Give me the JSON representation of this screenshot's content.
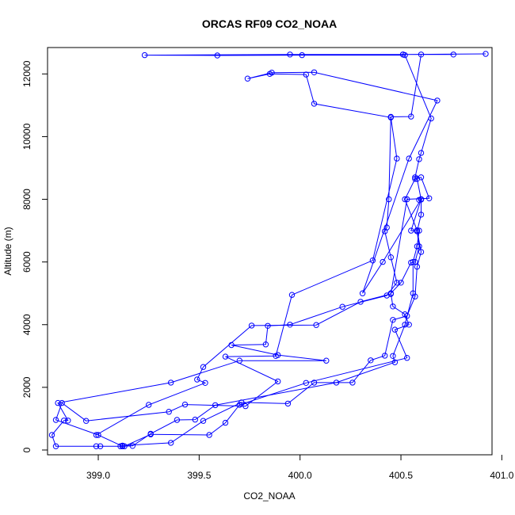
{
  "colors": {
    "series": "#0000ff",
    "axis": "#000000",
    "background": "#ffffff"
  },
  "chart_data": {
    "type": "line",
    "title": "ORCAS RF09 CO2_NOAA",
    "xlabel": "CO2_NOAA",
    "ylabel": "Altitude (m)",
    "xlim": [
      398.78,
      400.92
    ],
    "ylim": [
      50,
      12640
    ],
    "x_ticks": [
      399.0,
      399.5,
      400.0,
      400.5,
      401.0
    ],
    "x_tick_labels": [
      "399.0",
      "399.5",
      "400.0",
      "400.5",
      "401.0"
    ],
    "y_ticks": [
      0,
      2000,
      4000,
      6000,
      8000,
      10000,
      12000
    ],
    "y_tick_labels": [
      "0",
      "2000",
      "4000",
      "6000",
      "8000",
      "10000",
      "12000"
    ],
    "marker": "open-circle",
    "series": [
      {
        "x": [
          398.99,
          399.13,
          399.26,
          399.55,
          399.63,
          399.7,
          400.03,
          400.53,
          400.47,
          400.54,
          400.52,
          400.46,
          400.45,
          400.5,
          400.55,
          400.57,
          400.59,
          400.58,
          400.6,
          400.6,
          400.59,
          400.6,
          400.58,
          400.57,
          400.59,
          400.6,
          400.65,
          400.52,
          400.01,
          399.59,
          399.23,
          399.95,
          400.51,
          400.92,
          400.51,
          400.76,
          400.6,
          400.55,
          400.45,
          400.44,
          400.43,
          400.42,
          400.45,
          400.48,
          400.43,
          400.21,
          399.95,
          399.84,
          399.83,
          399.66,
          399.89,
          400.13,
          399.7,
          399.36,
          398.8,
          398.85,
          398.83,
          398.77,
          398.79,
          399.01
        ],
        "y": [
          120,
          120,
          500,
          480,
          870,
          1440,
          2140,
          2940,
          3840,
          4000,
          4330,
          4580,
          5000,
          5340,
          5980,
          6000,
          6500,
          6980,
          7510,
          7990,
          7980,
          8000,
          8650,
          8700,
          9280,
          9480,
          10580,
          12600,
          12600,
          12590,
          12600,
          12620,
          12620,
          12640,
          12620,
          12620,
          12620,
          10640,
          10630,
          8000,
          7100,
          6980,
          6150,
          5340,
          4930,
          4570,
          4000,
          3960,
          3370,
          3350,
          3030,
          2850,
          2850,
          2150,
          1500,
          940,
          940,
          480,
          120,
          120
        ]
      },
      {
        "x": [
          399.11,
          399.17,
          399.26,
          399.39,
          399.48,
          399.58,
          400.18,
          400.47,
          400.46,
          400.52,
          400.56,
          400.56,
          400.58,
          400.59,
          400.55,
          400.6,
          400.41,
          400.31,
          400.54,
          400.68,
          400.07,
          399.86,
          399.74,
          399.85,
          400.03,
          400.07,
          400.45,
          400.48,
          400.36,
          399.96,
          399.88,
          399.63,
          399.89,
          399.73,
          399.43,
          399.35,
          398.94,
          398.82,
          398.79,
          399.0,
          399.12
        ],
        "y": [
          120,
          130,
          520,
          960,
          970,
          1430,
          2150,
          2800,
          3000,
          4000,
          5000,
          6000,
          6500,
          7000,
          7000,
          8000,
          6000,
          5000,
          9300,
          11150,
          12050,
          12040,
          11850,
          12000,
          11980,
          11050,
          10610,
          9300,
          6050,
          4950,
          3000,
          2980,
          2190,
          1400,
          1450,
          1220,
          930,
          1500,
          960,
          480,
          120
        ]
      },
      {
        "x": [
          399.12,
          399.36,
          399.52,
          399.71,
          399.94,
          400.07,
          400.26,
          400.35,
          400.42,
          400.46,
          400.53,
          400.57,
          400.58,
          400.6,
          400.58,
          400.52,
          400.57,
          400.6,
          400.64,
          400.53,
          400.45,
          400.3,
          400.08,
          399.76,
          399.52,
          399.49,
          399.53,
          399.25,
          398.99
        ],
        "y": [
          140,
          230,
          930,
          1520,
          1480,
          2150,
          2150,
          2860,
          3010,
          4150,
          4280,
          4900,
          5850,
          6320,
          7010,
          8000,
          8650,
          8700,
          8030,
          8000,
          4980,
          4730,
          3990,
          3970,
          2650,
          2250,
          2140,
          1440,
          480
        ]
      }
    ]
  }
}
